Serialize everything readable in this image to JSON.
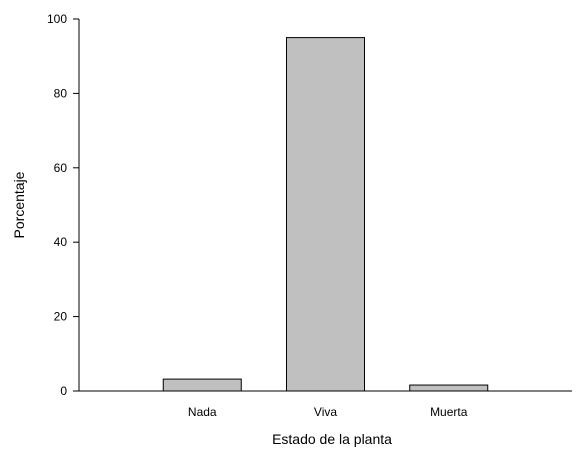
{
  "chart_data": {
    "type": "bar",
    "categories": [
      "Nada",
      "Viva",
      "Muerta"
    ],
    "values": [
      3.2,
      95.0,
      1.6
    ],
    "xlabel": "Estado de la planta",
    "ylabel": "Porcentaje",
    "ylim": [
      0,
      100
    ],
    "yticks": [
      0,
      20,
      40,
      60,
      80,
      100
    ],
    "grid": false,
    "bar_color": "#c0c0c0",
    "bar_edge_color": "#000000"
  }
}
